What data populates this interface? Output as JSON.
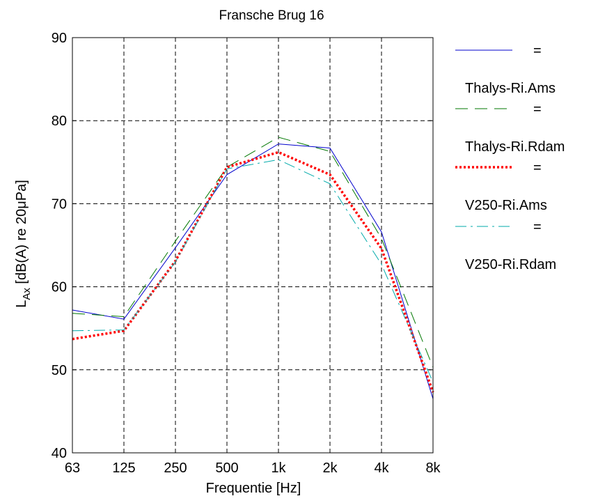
{
  "chart_data": {
    "type": "line",
    "title": "Fransche Brug 16",
    "xlabel": "Frequentie [Hz]",
    "ylabel_prefix": "L",
    "ylabel_sub": "Ax",
    "ylabel_suffix": " [dB(A) re 20μPa]",
    "categories": [
      "63",
      "125",
      "250",
      "500",
      "1k",
      "2k",
      "4k",
      "8k"
    ],
    "ylim": [
      40,
      90
    ],
    "yticks": [
      "40",
      "50",
      "60",
      "70",
      "80",
      "90"
    ],
    "grid": true,
    "legend_position": "right",
    "legend_eq": "=",
    "series": [
      {
        "name": "Thalys-Ri.Ams",
        "color": "#0000cc",
        "style": "solid",
        "values": [
          57.2,
          56.1,
          64.7,
          73.5,
          77.2,
          76.7,
          66.6,
          46.5
        ]
      },
      {
        "name": "Thalys-Ri.Rdam",
        "color": "#007700",
        "style": "dashed",
        "values": [
          56.8,
          56.4,
          65.5,
          74.4,
          78.0,
          76.3,
          65.8,
          50.3
        ]
      },
      {
        "name": "V250-Ri.Ams",
        "color": "#ff0000",
        "style": "dotted",
        "values": [
          53.7,
          54.7,
          63.1,
          74.4,
          76.2,
          73.5,
          64.6,
          47.3
        ]
      },
      {
        "name": "V250-Ri.Rdam",
        "color": "#00aaaa",
        "style": "dashdot",
        "values": [
          54.7,
          54.8,
          63.0,
          74.2,
          75.3,
          72.4,
          62.7,
          48.5
        ]
      }
    ]
  }
}
